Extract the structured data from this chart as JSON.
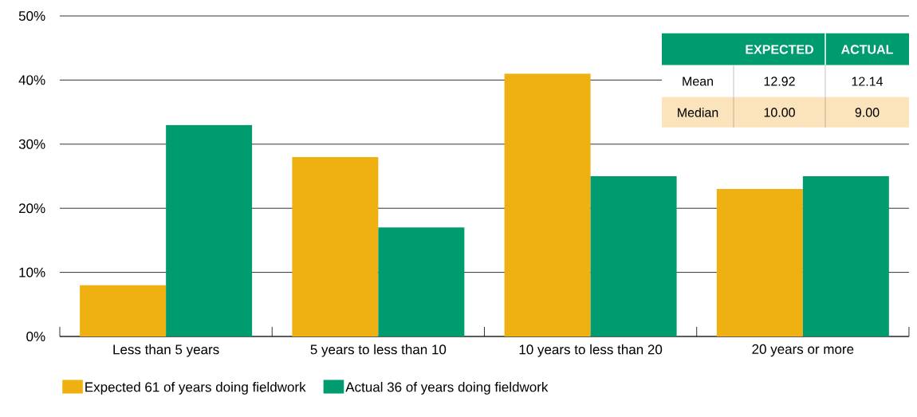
{
  "chart_data": {
    "type": "bar",
    "categories": [
      "Less than 5 years",
      "5 years to less than 10",
      "10 years to less than 20",
      "20 years or more"
    ],
    "series": [
      {
        "name": "Expected 61 of years doing fieldwork",
        "color": "#eeb111",
        "values": [
          8,
          28,
          41,
          23
        ]
      },
      {
        "name": "Actual 36 of years doing fieldwork",
        "color": "#009b6f",
        "values": [
          33,
          17,
          25,
          25
        ]
      }
    ],
    "ylim": [
      0,
      50
    ],
    "yticks": [
      {
        "value": 0,
        "label": "0%"
      },
      {
        "value": 10,
        "label": "10%"
      },
      {
        "value": 20,
        "label": "20%"
      },
      {
        "value": 30,
        "label": "30%"
      },
      {
        "value": 40,
        "label": "40%"
      },
      {
        "value": 50,
        "label": "50%"
      }
    ],
    "grid": "y",
    "legend": "bottom left",
    "annotations": [
      "EXPECTED",
      "ACTUAL",
      "Mean",
      "12.92",
      "12.14",
      "Median",
      "10.00",
      "9.00"
    ]
  }
}
